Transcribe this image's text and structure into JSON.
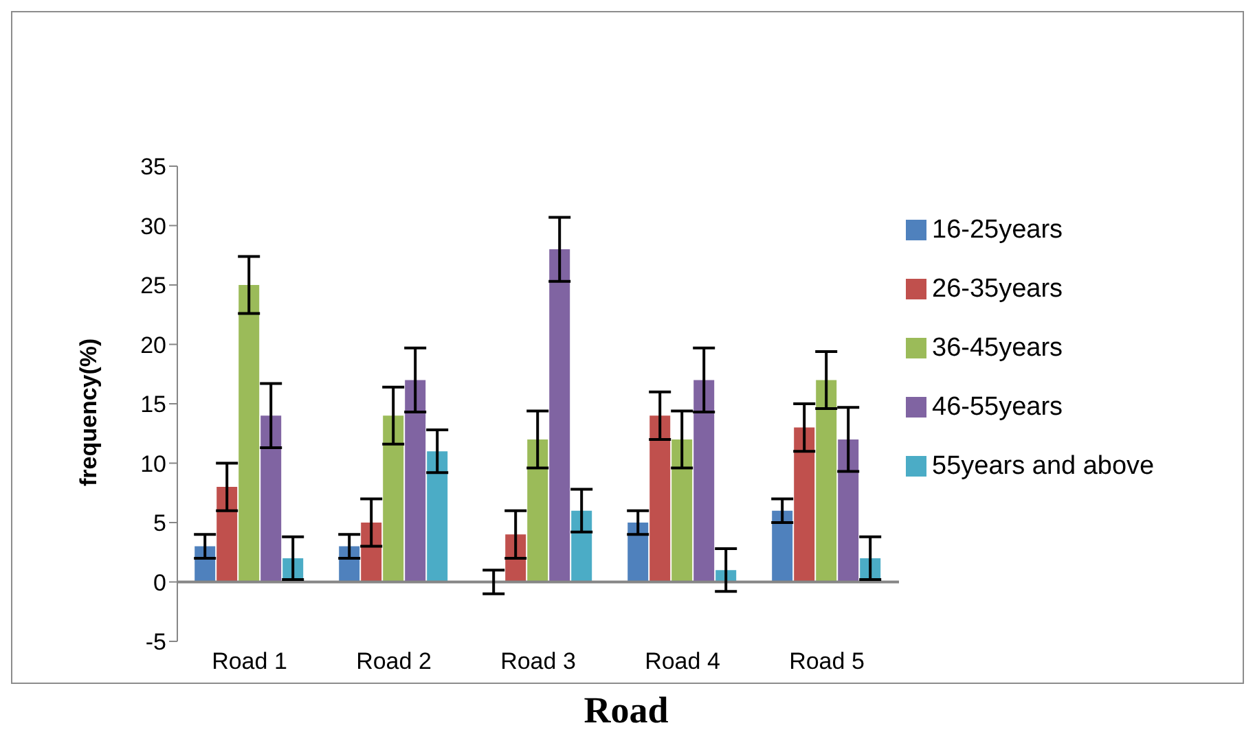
{
  "chart_data": {
    "type": "bar",
    "xlabel": "Road",
    "ylabel": "frequency(%)",
    "categories": [
      "Road 1",
      "Road 2",
      "Road 3",
      "Road 4",
      "Road 5"
    ],
    "series": [
      {
        "name": "16-25years",
        "color": "#4f81bd",
        "values": [
          3,
          3,
          0,
          5,
          6
        ],
        "errors": [
          1,
          1,
          1,
          1,
          1
        ]
      },
      {
        "name": "26-35years",
        "color": "#c0504d",
        "values": [
          8,
          5,
          4,
          14,
          13
        ],
        "errors": [
          2,
          2,
          2,
          2,
          2
        ]
      },
      {
        "name": "36-45years",
        "color": "#9bbb59",
        "values": [
          25,
          14,
          12,
          12,
          17
        ],
        "errors": [
          2.4,
          2.4,
          2.4,
          2.4,
          2.4
        ]
      },
      {
        "name": "46-55years",
        "color": "#8064a2",
        "values": [
          14,
          17,
          28,
          17,
          12
        ],
        "errors": [
          2.7,
          2.7,
          2.7,
          2.7,
          2.7
        ]
      },
      {
        "name": "55years and above",
        "color": "#4bacc6",
        "values": [
          2,
          11,
          6,
          1,
          2
        ],
        "errors": [
          1.8,
          1.8,
          1.8,
          1.8,
          1.8
        ]
      }
    ],
    "ylim": [
      -5,
      35
    ],
    "yticks": [
      -5,
      0,
      5,
      10,
      15,
      20,
      25,
      30,
      35
    ],
    "legend": "right"
  }
}
